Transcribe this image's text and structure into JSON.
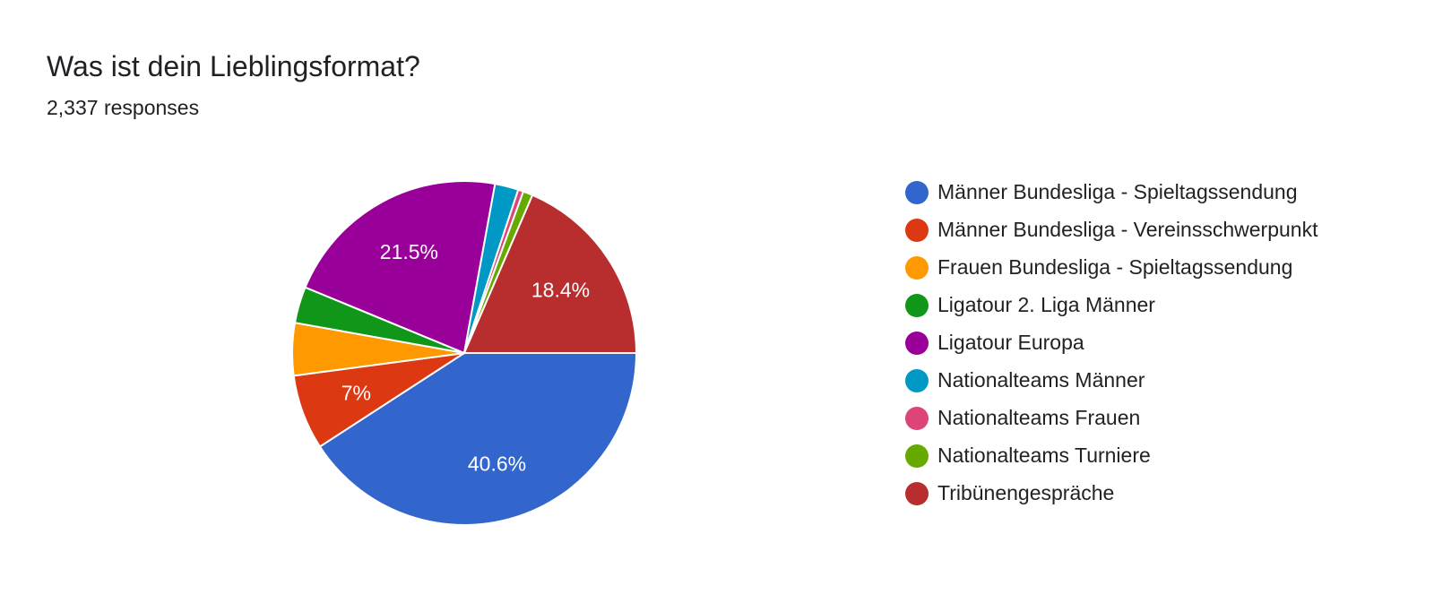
{
  "header": {
    "title": "Was ist dein Lieblingsformat?",
    "responses": "2,337 responses"
  },
  "chart_data": {
    "type": "pie",
    "title": "Was ist dein Lieblingsformat?",
    "legend_position": "right",
    "start": "3 o'clock, clockwise",
    "slices": [
      {
        "label": "Männer Bundesliga - Spieltagssendung",
        "value": 40.6,
        "color": "#3366CC",
        "data_label": "40.6%"
      },
      {
        "label": "Männer Bundesliga - Vereinsschwerpunkt",
        "value": 7.0,
        "color": "#DC3912",
        "data_label": "7%"
      },
      {
        "label": "Frauen Bundesliga - Spieltagssendung",
        "value": 4.9,
        "color": "#FF9900",
        "data_label": ""
      },
      {
        "label": "Ligatour 2. Liga Männer",
        "value": 3.4,
        "color": "#109618",
        "data_label": ""
      },
      {
        "label": "Ligatour Europa",
        "value": 21.5,
        "color": "#990099",
        "data_label": "21.5%"
      },
      {
        "label": "Nationalteams Männer",
        "value": 2.2,
        "color": "#0099C6",
        "data_label": ""
      },
      {
        "label": "Nationalteams Frauen",
        "value": 0.5,
        "color": "#DD4477",
        "data_label": ""
      },
      {
        "label": "Nationalteams Turniere",
        "value": 0.9,
        "color": "#66AA00",
        "data_label": ""
      },
      {
        "label": "Tribünengespräche",
        "value": 18.4,
        "color": "#B82E2E",
        "data_label": "18.4%"
      }
    ]
  }
}
